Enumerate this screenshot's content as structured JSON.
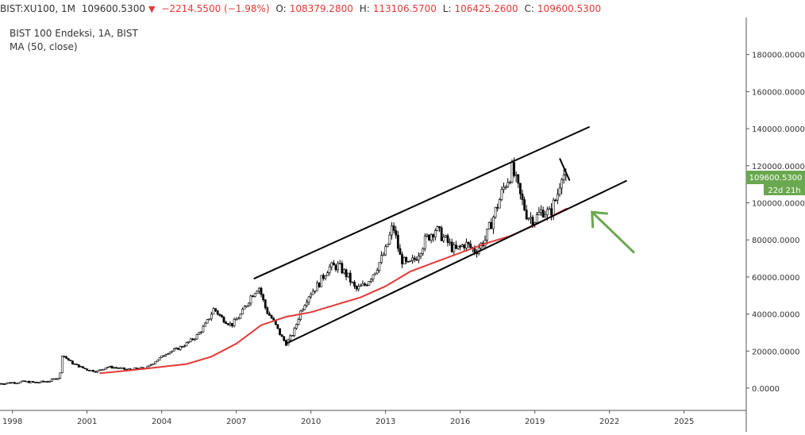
{
  "header": {
    "symbol": "BIST:XU100, 1M",
    "price": "109600.5300",
    "change": "−2214.5500 (−1.98%)",
    "open_label": "O:",
    "open": "108379.2800",
    "high_label": "H:",
    "high": "113106.5700",
    "low_label": "L:",
    "low": "106425.2600",
    "close_label": "C:",
    "close": "109600.5300"
  },
  "legend": {
    "title": "BIST 100 Endeksi, 1A, BIST",
    "indicator": "MA (50, close)"
  },
  "price_tag": {
    "value": "109600.5300",
    "countdown": "22d 21h"
  },
  "colors": {
    "up": "#ffffff",
    "down": "#000000",
    "ma": "#e53935",
    "channel": "#000000",
    "arrow": "#6aa84f",
    "price_tag": "#6aa84f"
  },
  "chart_data": {
    "type": "candlestick",
    "title": "BIST 100 Endeksi, 1A, BIST",
    "series": [
      {
        "name": "BIST 100 Endeksi",
        "kind": "candles"
      },
      {
        "name": "MA (50, close)",
        "kind": "line"
      }
    ],
    "x_tick_labels": [
      "1998",
      "2001",
      "2004",
      "2007",
      "2010",
      "2013",
      "2016",
      "2019",
      "2022",
      "2025"
    ],
    "x_ticks": [
      1998,
      2001,
      2004,
      2007,
      2010,
      2013,
      2016,
      2019,
      2022,
      2025
    ],
    "y_tick_labels": [
      "0.0000",
      "20000.0000",
      "40000.0000",
      "60000.0000",
      "80000.0000",
      "100000.0000",
      "120000.0000",
      "140000.0000",
      "160000.0000",
      "180000.0000"
    ],
    "y_ticks": [
      0,
      20000,
      40000,
      60000,
      80000,
      100000,
      120000,
      140000,
      160000,
      180000
    ],
    "xlim": [
      1997.5,
      2027.5
    ],
    "ylim": [
      -12000,
      200000
    ],
    "close_path": [
      [
        1997.5,
        2500
      ],
      [
        1998.5,
        3500
      ],
      [
        1999.0,
        3000
      ],
      [
        1999.5,
        4000
      ],
      [
        1999.9,
        6000
      ],
      [
        2000.0,
        18000
      ],
      [
        2000.4,
        13500
      ],
      [
        2000.8,
        11000
      ],
      [
        2001.0,
        10000
      ],
      [
        2001.4,
        9000
      ],
      [
        2001.8,
        11500
      ],
      [
        2002.2,
        11000
      ],
      [
        2002.6,
        10000
      ],
      [
        2003.0,
        10500
      ],
      [
        2003.4,
        11000
      ],
      [
        2003.8,
        15000
      ],
      [
        2004.2,
        19000
      ],
      [
        2004.6,
        21000
      ],
      [
        2005.0,
        24000
      ],
      [
        2005.4,
        28000
      ],
      [
        2005.8,
        35000
      ],
      [
        2006.1,
        43000
      ],
      [
        2006.4,
        38000
      ],
      [
        2006.8,
        34000
      ],
      [
        2007.2,
        40000
      ],
      [
        2007.6,
        50000
      ],
      [
        2007.9,
        55000
      ],
      [
        2008.2,
        42000
      ],
      [
        2008.5,
        36000
      ],
      [
        2008.8,
        28000
      ],
      [
        2009.0,
        24000
      ],
      [
        2009.3,
        30000
      ],
      [
        2009.6,
        42000
      ],
      [
        2009.9,
        50000
      ],
      [
        2010.3,
        56000
      ],
      [
        2010.7,
        65000
      ],
      [
        2011.1,
        66000
      ],
      [
        2011.5,
        60000
      ],
      [
        2011.8,
        53000
      ],
      [
        2012.2,
        56000
      ],
      [
        2012.6,
        64000
      ],
      [
        2013.0,
        74000
      ],
      [
        2013.3,
        88000
      ],
      [
        2013.6,
        70000
      ],
      [
        2013.9,
        66000
      ],
      [
        2014.2,
        70000
      ],
      [
        2014.6,
        80000
      ],
      [
        2015.0,
        86000
      ],
      [
        2015.4,
        80000
      ],
      [
        2015.8,
        74000
      ],
      [
        2016.2,
        78000
      ],
      [
        2016.6,
        74000
      ],
      [
        2017.0,
        80000
      ],
      [
        2017.4,
        95000
      ],
      [
        2017.8,
        110000
      ],
      [
        2018.1,
        118000
      ],
      [
        2018.4,
        104000
      ],
      [
        2018.7,
        93000
      ],
      [
        2019.0,
        91000
      ],
      [
        2019.3,
        96000
      ],
      [
        2019.6,
        94000
      ],
      [
        2019.9,
        104000
      ],
      [
        2020.1,
        118000
      ],
      [
        2020.3,
        109600
      ]
    ],
    "ma_path": [
      [
        2001.5,
        8000
      ],
      [
        2003.0,
        10000
      ],
      [
        2004.0,
        11500
      ],
      [
        2005.0,
        13000
      ],
      [
        2006.0,
        17000
      ],
      [
        2007.0,
        24000
      ],
      [
        2008.0,
        34000
      ],
      [
        2009.0,
        38500
      ],
      [
        2010.0,
        41000
      ],
      [
        2011.0,
        45000
      ],
      [
        2012.0,
        49000
      ],
      [
        2013.0,
        55000
      ],
      [
        2014.0,
        63000
      ],
      [
        2015.0,
        68000
      ],
      [
        2016.0,
        73000
      ],
      [
        2017.0,
        78000
      ],
      [
        2018.0,
        82000
      ],
      [
        2019.0,
        88000
      ],
      [
        2020.0,
        95000
      ],
      [
        2020.3,
        97000
      ]
    ],
    "trend_lines": [
      {
        "name": "channel-upper",
        "from": [
          2007.7,
          59000
        ],
        "to": [
          2021.2,
          141000
        ]
      },
      {
        "name": "channel-lower",
        "from": [
          2009.0,
          24000
        ],
        "to": [
          2022.7,
          112000
        ]
      },
      {
        "name": "recent-down-segment",
        "from": [
          2020.0,
          124000
        ],
        "to": [
          2020.4,
          112000
        ]
      }
    ],
    "annotation_arrow": {
      "from": [
        2023.0,
        73000
      ],
      "to": [
        2021.3,
        95000
      ]
    }
  }
}
